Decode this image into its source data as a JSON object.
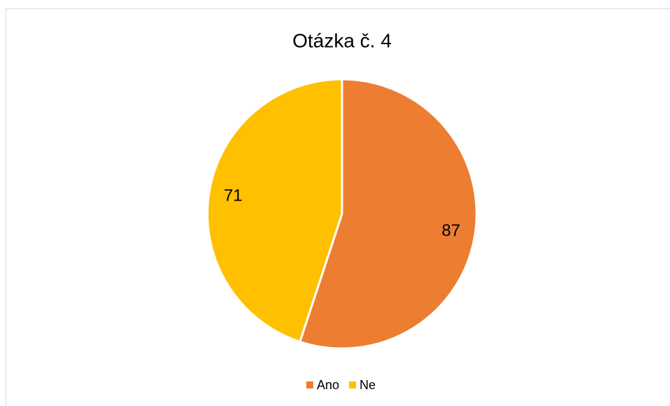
{
  "chart_data": {
    "type": "pie",
    "title": "Otázka č. 4",
    "categories": [
      "Ano",
      "Ne"
    ],
    "values": [
      87,
      71
    ],
    "colors": [
      "#ed7d31",
      "#ffc000"
    ],
    "legend": "bottom"
  }
}
